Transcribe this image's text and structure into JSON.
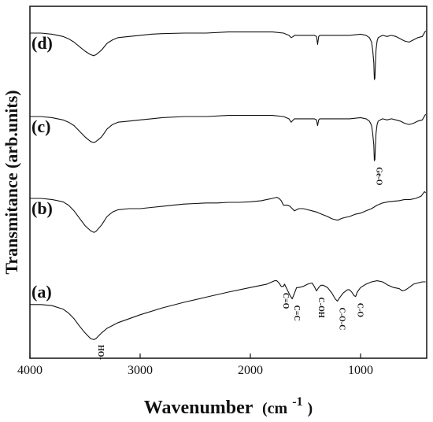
{
  "chart_data": {
    "type": "line",
    "title": "",
    "xlabel": "Wavenumber",
    "xlabel_unit": "(cm",
    "xlabel_exp": "-1",
    "xlabel_close": ")",
    "ylabel": "Transmitance (arb.units)",
    "xlim": [
      4000,
      400
    ],
    "x_reversed": true,
    "x_ticks": [
      4000,
      3000,
      2000,
      1000
    ],
    "x_tick_labels": [
      "4000",
      "3000",
      "2000",
      "1000"
    ],
    "y_ticks_shown": false,
    "grid": false,
    "series": [
      {
        "name": "(a)",
        "x": [
          4000,
          3900,
          3800,
          3700,
          3650,
          3600,
          3550,
          3500,
          3450,
          3420,
          3400,
          3350,
          3300,
          3200,
          3000,
          2800,
          2600,
          2400,
          2200,
          2000,
          1850,
          1780,
          1760,
          1740,
          1720,
          1700,
          1690,
          1680,
          1660,
          1640,
          1620,
          1600,
          1580,
          1560,
          1520,
          1480,
          1440,
          1420,
          1400,
          1380,
          1360,
          1340,
          1300,
          1260,
          1230,
          1210,
          1190,
          1160,
          1120,
          1100,
          1080,
          1060,
          1045,
          1030,
          1000,
          950,
          900,
          850,
          800,
          750,
          700,
          650,
          620,
          590,
          560,
          520,
          480,
          440,
          410
        ],
        "y": [
          -40,
          -40,
          -42,
          -48,
          -55,
          -65,
          -78,
          -90,
          -100,
          -102,
          -100,
          -90,
          -82,
          -72,
          -58,
          -46,
          -36,
          -27,
          -18,
          -10,
          -4,
          2,
          2,
          -2,
          -8,
          -8,
          -4,
          -8,
          -16,
          -24,
          -30,
          -20,
          -10,
          -10,
          -8,
          -4,
          -2,
          -8,
          -16,
          -10,
          -6,
          -6,
          -10,
          -20,
          -30,
          -34,
          -28,
          -20,
          -14,
          -14,
          -18,
          -24,
          -26,
          -18,
          -10,
          -4,
          0,
          2,
          0,
          -6,
          -10,
          -12,
          -16,
          -14,
          -10,
          -4,
          -2,
          0,
          0
        ]
      },
      {
        "name": "(b)",
        "x": [
          4000,
          3900,
          3800,
          3700,
          3650,
          3600,
          3550,
          3500,
          3450,
          3420,
          3400,
          3350,
          3300,
          3250,
          3200,
          3100,
          3000,
          2900,
          2800,
          2700,
          2600,
          2500,
          2400,
          2300,
          2200,
          2100,
          2000,
          1900,
          1850,
          1800,
          1760,
          1740,
          1720,
          1700,
          1660,
          1640,
          1620,
          1600,
          1560,
          1520,
          1480,
          1440,
          1400,
          1350,
          1300,
          1260,
          1220,
          1200,
          1180,
          1150,
          1100,
          1050,
          1000,
          950,
          900,
          850,
          800,
          750,
          700,
          650,
          600,
          550,
          500,
          450,
          420,
          410
        ],
        "y": [
          0,
          0,
          -2,
          -6,
          -12,
          -22,
          -35,
          -48,
          -57,
          -60,
          -58,
          -47,
          -32,
          -24,
          -20,
          -18,
          -18,
          -16,
          -14,
          -12,
          -10,
          -9,
          -8,
          -8,
          -7,
          -7,
          -6,
          -4,
          -2,
          0,
          2,
          0,
          -4,
          -12,
          -12,
          -14,
          -18,
          -22,
          -18,
          -18,
          -20,
          -22,
          -24,
          -28,
          -32,
          -36,
          -38,
          -38,
          -36,
          -34,
          -32,
          -28,
          -26,
          -22,
          -18,
          -12,
          -8,
          -6,
          -5,
          -4,
          -2,
          -2,
          0,
          4,
          12,
          10
        ]
      },
      {
        "name": "(c)",
        "x": [
          4000,
          3900,
          3800,
          3700,
          3650,
          3600,
          3550,
          3500,
          3450,
          3420,
          3400,
          3350,
          3300,
          3250,
          3200,
          3100,
          3000,
          2900,
          2800,
          2600,
          2400,
          2200,
          2000,
          1900,
          1800,
          1700,
          1650,
          1630,
          1610,
          1600,
          1500,
          1420,
          1400,
          1390,
          1380,
          1370,
          1350,
          1300,
          1200,
          1100,
          1000,
          950,
          920,
          900,
          890,
          880,
          875,
          870,
          865,
          860,
          850,
          840,
          820,
          800,
          760,
          720,
          680,
          640,
          600,
          560,
          520,
          480,
          440,
          410
        ],
        "y": [
          0,
          0,
          -2,
          -6,
          -10,
          -16,
          -26,
          -36,
          -44,
          -46,
          -44,
          -36,
          -22,
          -14,
          -10,
          -8,
          -6,
          -4,
          -2,
          0,
          0,
          2,
          2,
          2,
          2,
          0,
          -4,
          -10,
          -6,
          -4,
          -4,
          -4,
          -6,
          -16,
          -6,
          -4,
          -4,
          -4,
          -4,
          -4,
          -2,
          -4,
          -8,
          -16,
          -30,
          -50,
          -78,
          -76,
          -50,
          -30,
          -14,
          -8,
          -6,
          -4,
          -6,
          -4,
          -6,
          -8,
          -12,
          -14,
          -12,
          -8,
          -6,
          4
        ]
      },
      {
        "name": "(d)",
        "x": [
          4000,
          3900,
          3800,
          3700,
          3650,
          3600,
          3550,
          3500,
          3450,
          3420,
          3400,
          3350,
          3300,
          3250,
          3200,
          3100,
          3000,
          2900,
          2800,
          2600,
          2400,
          2200,
          2000,
          1900,
          1800,
          1700,
          1650,
          1630,
          1610,
          1600,
          1500,
          1420,
          1400,
          1390,
          1380,
          1370,
          1350,
          1300,
          1200,
          1100,
          1000,
          950,
          920,
          900,
          890,
          880,
          875,
          870,
          865,
          860,
          850,
          840,
          820,
          800,
          760,
          720,
          680,
          640,
          600,
          560,
          520,
          480,
          440,
          410
        ],
        "y": [
          0,
          0,
          -2,
          -6,
          -10,
          -16,
          -24,
          -32,
          -38,
          -40,
          -38,
          -30,
          -18,
          -12,
          -8,
          -6,
          -4,
          -2,
          -1,
          0,
          0,
          2,
          2,
          2,
          2,
          0,
          -4,
          -8,
          -6,
          -4,
          -4,
          -4,
          -6,
          -20,
          -6,
          -4,
          -4,
          -4,
          -4,
          -4,
          -2,
          -4,
          -8,
          -16,
          -30,
          -52,
          -82,
          -80,
          -52,
          -30,
          -14,
          -8,
          -6,
          -4,
          -6,
          -4,
          -6,
          -10,
          -14,
          -16,
          -12,
          -8,
          -6,
          4
        ]
      }
    ],
    "annotations": [
      {
        "text": "HO-",
        "x": 3400,
        "series": "(a)"
      },
      {
        "text": "C=O",
        "x": 1720,
        "series": "(a)"
      },
      {
        "text": "C=C",
        "x": 1620,
        "series": "(a)"
      },
      {
        "text": "C-OH",
        "x": 1400,
        "series": "(a)"
      },
      {
        "text": "C-O-C",
        "x": 1210,
        "series": "(a)"
      },
      {
        "text": "C-O",
        "x": 1045,
        "series": "(a)"
      },
      {
        "text": "Ge-O",
        "x": 875,
        "series": "(c)"
      }
    ]
  }
}
